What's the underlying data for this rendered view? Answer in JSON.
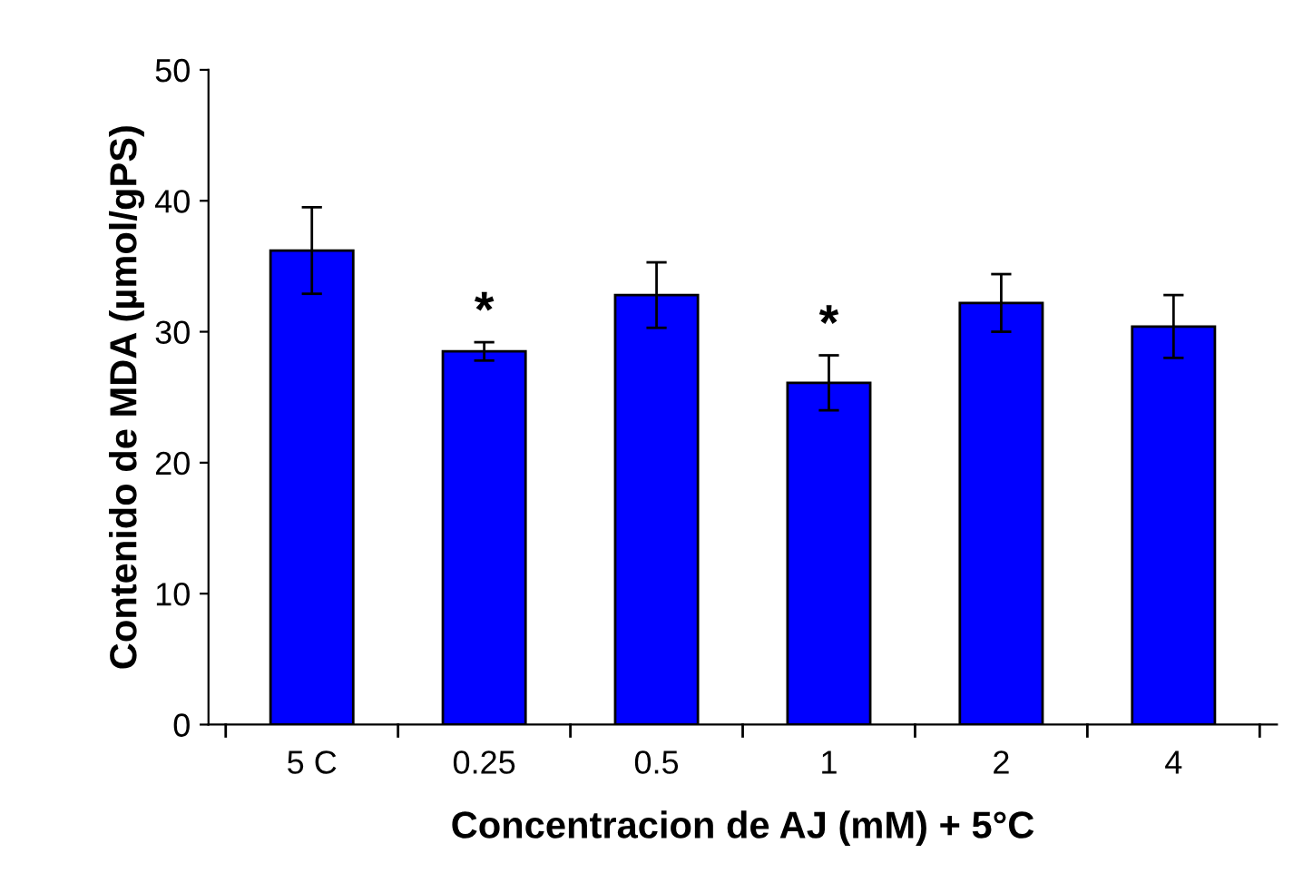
{
  "chart_data": {
    "type": "bar",
    "xlabel": "Concentracion de AJ (mM) + 5°C",
    "ylabel": "Contenido de MDA (µmol/gPS)",
    "categories": [
      "5 C",
      "0.25",
      "0.5",
      "1",
      "2",
      "4"
    ],
    "values": [
      36.2,
      28.5,
      32.8,
      26.1,
      32.2,
      30.4
    ],
    "errors": [
      3.3,
      0.7,
      2.5,
      2.1,
      2.2,
      2.4
    ],
    "color": "#0000ff",
    "ylim": [
      0,
      50
    ],
    "yticks": [
      0,
      10,
      20,
      30,
      40,
      50
    ],
    "grid": false,
    "legend": false,
    "annotations": [
      {
        "text": "*",
        "x": "0.25",
        "y": 29.2
      },
      {
        "text": "*",
        "x": "1",
        "y": 28.2
      }
    ]
  }
}
